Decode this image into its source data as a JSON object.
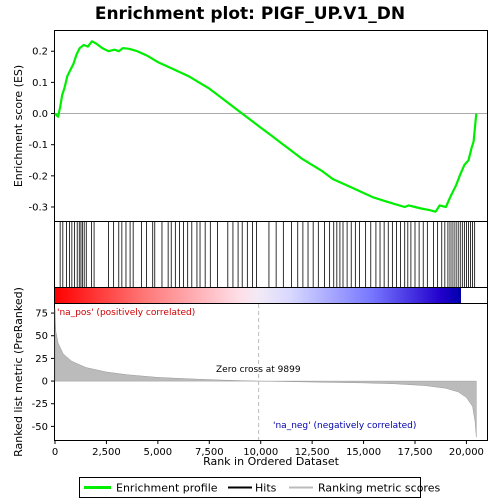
{
  "chart_data": {
    "type": "line",
    "title": "Enrichment plot: PIGF_UP.V1_DN",
    "xlabel": "Rank in Ordered Dataset",
    "ylabel_top": "Enrichment score (ES)",
    "ylabel_bottom": "Ranked list metric (PreRanked)",
    "x_ticks": [
      0,
      2500,
      5000,
      7500,
      10000,
      12500,
      15000,
      17500,
      20000
    ],
    "x_tick_labels": [
      "0",
      "2,500",
      "5,000",
      "7,500",
      "10,000",
      "12,500",
      "15,000",
      "17,500",
      "20,000"
    ],
    "xlim": [
      0,
      21000
    ],
    "es_ticks": [
      0.2,
      0.1,
      0.0,
      -0.1,
      -0.2,
      -0.3
    ],
    "es_tick_labels": [
      "0.2",
      "0.1",
      "0.0",
      "-0.1",
      "-0.2",
      "-0.3"
    ],
    "es_ylim": [
      -0.345,
      0.265
    ],
    "metric_ticks": [
      75,
      50,
      25,
      0,
      -25,
      -50
    ],
    "metric_tick_labels": [
      "75",
      "50",
      "25",
      "0",
      "-25",
      "-50"
    ],
    "metric_ylim": [
      -65,
      85
    ],
    "es_profile": [
      [
        0,
        0.0
      ],
      [
        150,
        -0.01
      ],
      [
        250,
        0.02
      ],
      [
        350,
        0.06
      ],
      [
        450,
        0.08
      ],
      [
        600,
        0.12
      ],
      [
        750,
        0.14
      ],
      [
        900,
        0.16
      ],
      [
        1050,
        0.19
      ],
      [
        1200,
        0.21
      ],
      [
        1400,
        0.22
      ],
      [
        1600,
        0.215
      ],
      [
        1800,
        0.232
      ],
      [
        2000,
        0.225
      ],
      [
        2300,
        0.21
      ],
      [
        2600,
        0.2
      ],
      [
        2900,
        0.205
      ],
      [
        3100,
        0.2
      ],
      [
        3300,
        0.21
      ],
      [
        3600,
        0.208
      ],
      [
        4000,
        0.2
      ],
      [
        4500,
        0.185
      ],
      [
        5000,
        0.165
      ],
      [
        5500,
        0.15
      ],
      [
        6000,
        0.135
      ],
      [
        6500,
        0.12
      ],
      [
        7000,
        0.1
      ],
      [
        7500,
        0.08
      ],
      [
        8000,
        0.055
      ],
      [
        8500,
        0.03
      ],
      [
        9000,
        0.005
      ],
      [
        9500,
        -0.02
      ],
      [
        10000,
        -0.045
      ],
      [
        10500,
        -0.07
      ],
      [
        11000,
        -0.095
      ],
      [
        11500,
        -0.12
      ],
      [
        12000,
        -0.145
      ],
      [
        12500,
        -0.165
      ],
      [
        13000,
        -0.185
      ],
      [
        13500,
        -0.21
      ],
      [
        14000,
        -0.225
      ],
      [
        14500,
        -0.24
      ],
      [
        15000,
        -0.255
      ],
      [
        15500,
        -0.27
      ],
      [
        16000,
        -0.28
      ],
      [
        16500,
        -0.29
      ],
      [
        17000,
        -0.3
      ],
      [
        17200,
        -0.295
      ],
      [
        17500,
        -0.3
      ],
      [
        17800,
        -0.305
      ],
      [
        18200,
        -0.31
      ],
      [
        18500,
        -0.315
      ],
      [
        18700,
        -0.295
      ],
      [
        19000,
        -0.3
      ],
      [
        19200,
        -0.27
      ],
      [
        19500,
        -0.23
      ],
      [
        19700,
        -0.195
      ],
      [
        19900,
        -0.165
      ],
      [
        20100,
        -0.15
      ],
      [
        20250,
        -0.11
      ],
      [
        20350,
        -0.09
      ],
      [
        20420,
        -0.04
      ],
      [
        20480,
        0.0
      ]
    ],
    "hit_ranks": [
      250,
      380,
      560,
      700,
      820,
      950,
      1080,
      1180,
      1260,
      1330,
      1420,
      1520,
      1780,
      1900,
      2600,
      2850,
      3100,
      3250,
      3450,
      3650,
      3800,
      4200,
      4450,
      4750,
      4850,
      5200,
      5500,
      5650,
      5850,
      6050,
      6250,
      6450,
      6650,
      6900,
      7050,
      7300,
      7550,
      7900,
      8400,
      8650,
      8900,
      9100,
      9350,
      9600,
      9800,
      10400,
      10750,
      11100,
      11500,
      11800,
      12050,
      12300,
      12550,
      12800,
      13100,
      13350,
      13550,
      13700,
      13850,
      14000,
      14200,
      14400,
      14600,
      14800,
      15100,
      15350,
      15600,
      15800,
      16000,
      16200,
      16400,
      16600,
      16800,
      17000,
      17150,
      17300,
      17500,
      17700,
      17900,
      18100,
      18400,
      18600,
      18800,
      18950,
      19100,
      19200,
      19300,
      19400,
      19500,
      19600,
      19700,
      19800,
      19900,
      20000,
      20100,
      20200,
      20300,
      20400
    ],
    "metric_profile": [
      [
        0,
        80
      ],
      [
        40,
        55
      ],
      [
        150,
        42
      ],
      [
        400,
        30
      ],
      [
        800,
        22
      ],
      [
        1500,
        15
      ],
      [
        2500,
        10
      ],
      [
        3500,
        7
      ],
      [
        5000,
        4
      ],
      [
        6500,
        2.5
      ],
      [
        8000,
        1.2
      ],
      [
        9000,
        0.5
      ],
      [
        9899,
        0
      ],
      [
        11000,
        -0.5
      ],
      [
        13000,
        -1.2
      ],
      [
        15000,
        -2
      ],
      [
        16500,
        -3
      ],
      [
        18000,
        -5
      ],
      [
        19000,
        -8
      ],
      [
        19600,
        -12
      ],
      [
        20000,
        -18
      ],
      [
        20300,
        -28
      ],
      [
        20420,
        -45
      ],
      [
        20480,
        -62
      ]
    ],
    "zero_cross_rank": 9899,
    "zero_cross_label": "Zero cross at 9899",
    "pos_label": "'na_pos' (positively correlated)",
    "neg_label": "'na_neg' (negatively correlated)",
    "legend": [
      {
        "label": "Enrichment profile",
        "color": "#00ee00"
      },
      {
        "label": "Hits",
        "color": "#000000"
      },
      {
        "label": "Ranking metric scores",
        "color": "#bbbbbb"
      }
    ],
    "colors": {
      "profile": "#00ee00",
      "hits": "#000000",
      "metric": "#bbbbbb",
      "pos_text": "#cc0000",
      "neg_text": "#0000aa",
      "zero_line": "#bbbbbb"
    }
  }
}
